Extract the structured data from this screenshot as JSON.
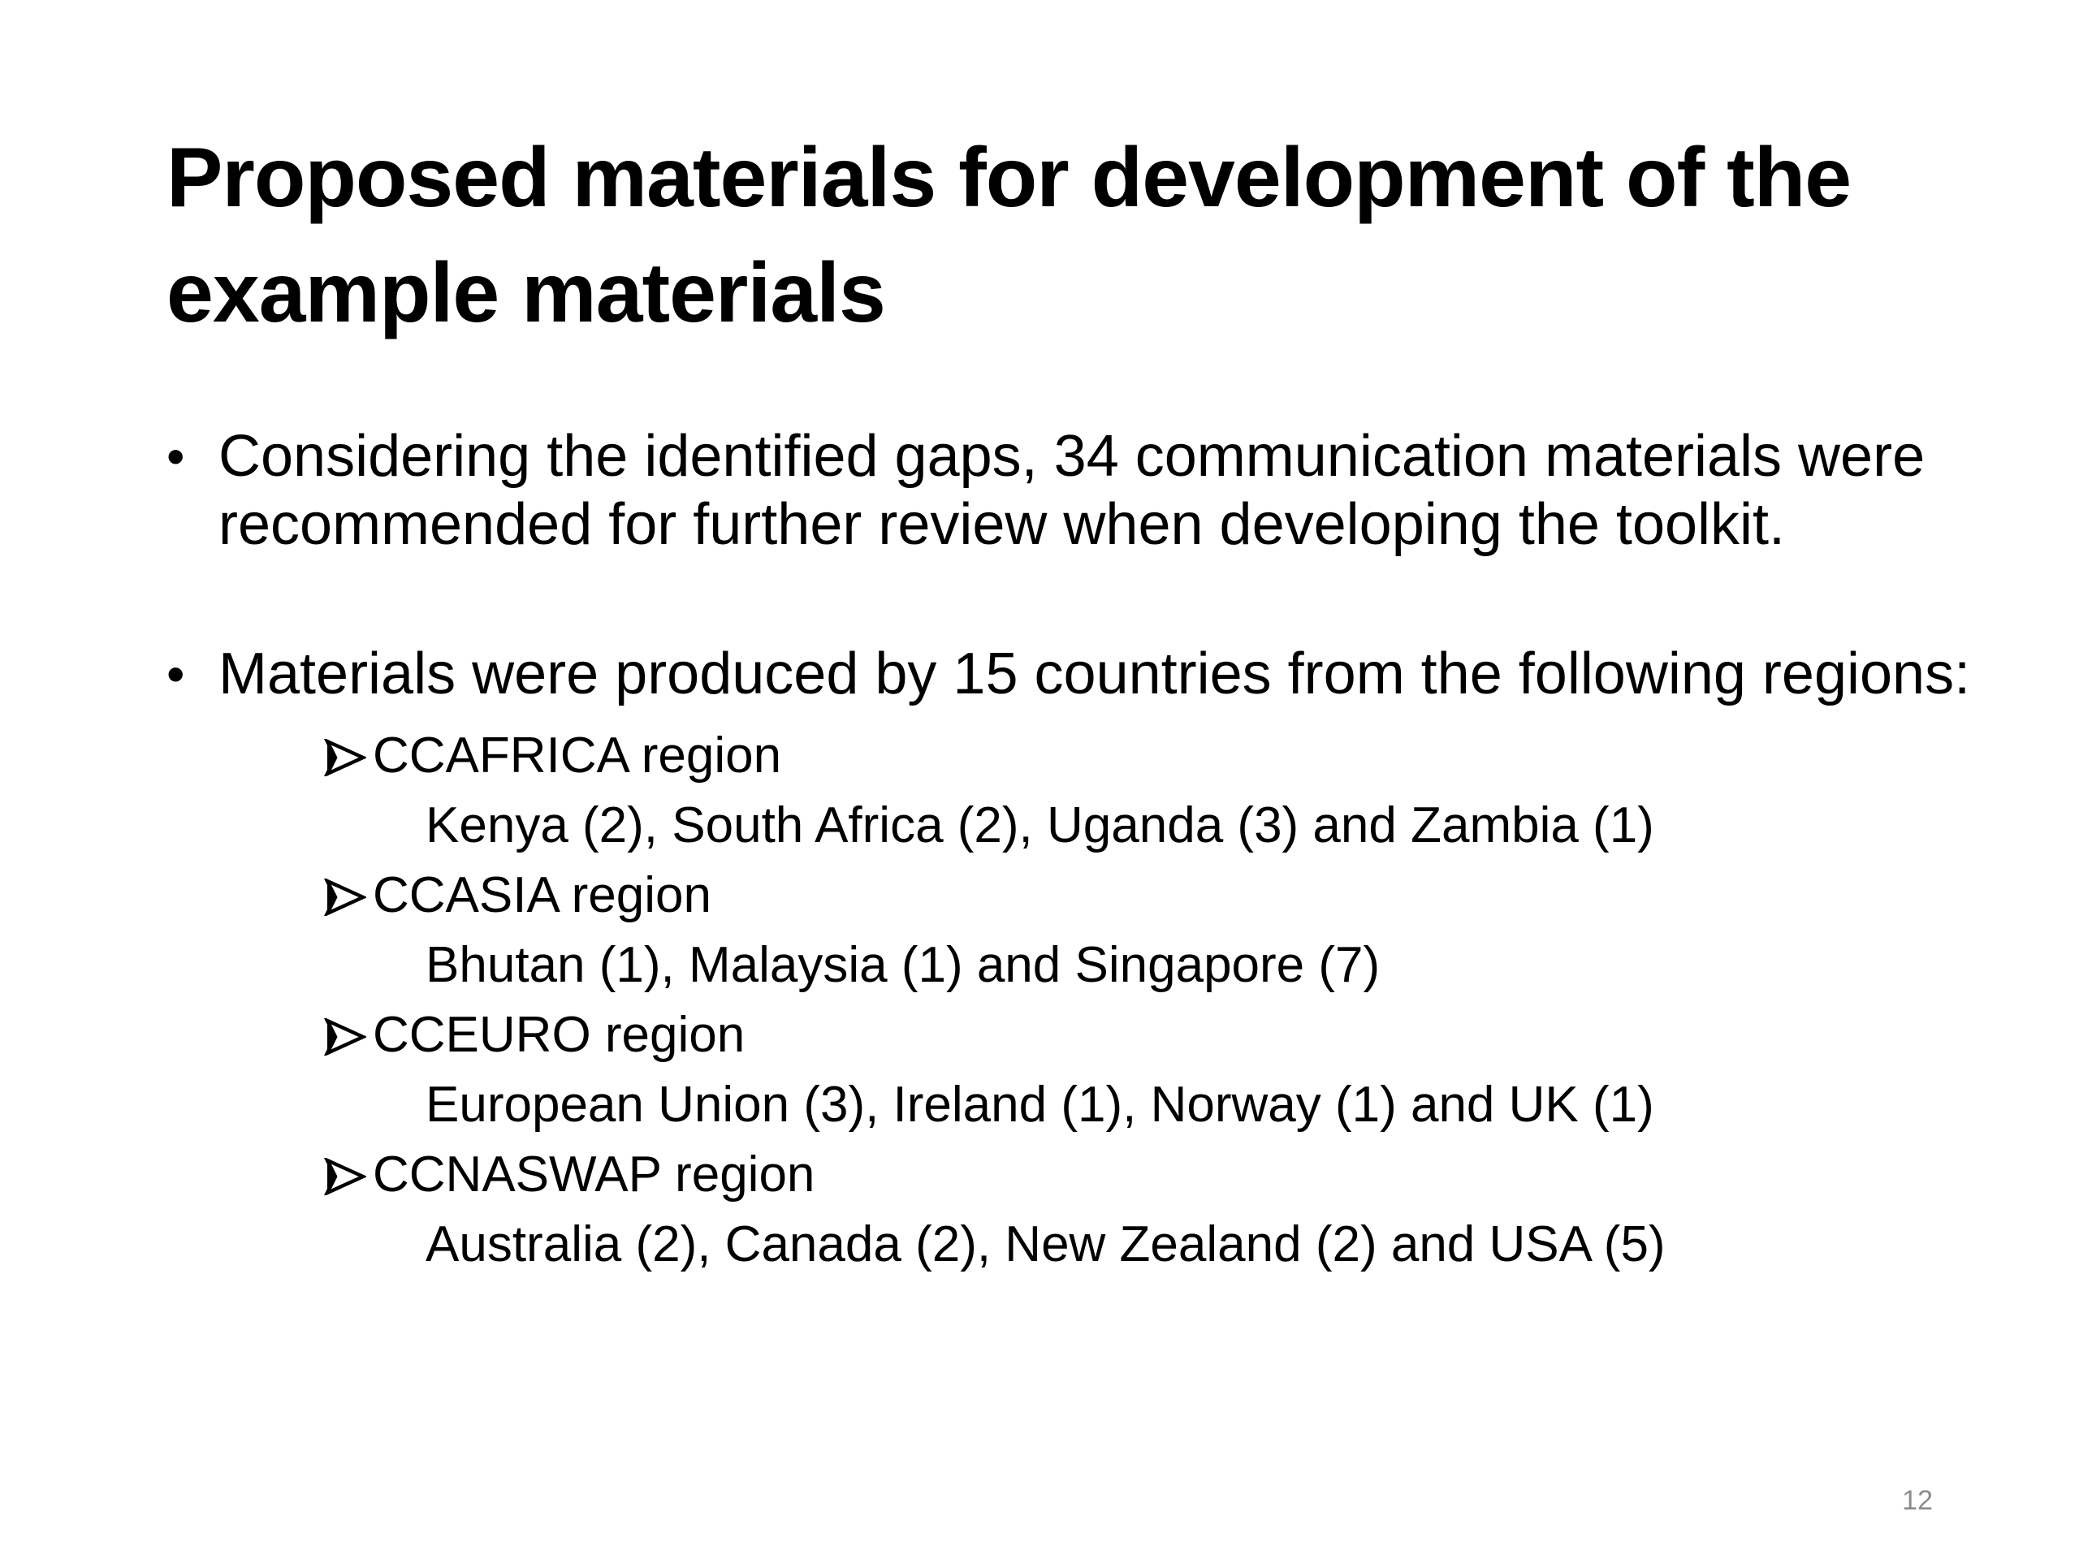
{
  "slide": {
    "title": "Proposed materials for development of the example materials",
    "bullets": [
      {
        "text": "Considering the identified gaps, 34 communication materials were recommended for further review when developing the toolkit."
      },
      {
        "text": "Materials were produced by 15 countries from the following regions:",
        "regions": [
          {
            "name": "CCAFRICA region",
            "countries": "Kenya (2), South Africa (2), Uganda (3) and Zambia (1)"
          },
          {
            "name": "CCASIA region",
            "countries": "Bhutan (1), Malaysia (1) and Singapore (7)"
          },
          {
            "name": "CCEURO region",
            "countries": "European Union (3), Ireland (1), Norway (1) and UK (1)"
          },
          {
            "name": "CCNASWAP region",
            "countries": "Australia (2), Canada (2), New Zealand (2) and USA (5)"
          }
        ]
      }
    ],
    "bullet_symbol": "•",
    "sub_bullet_icon": "arrow-bullet-icon",
    "page_number": "12"
  }
}
